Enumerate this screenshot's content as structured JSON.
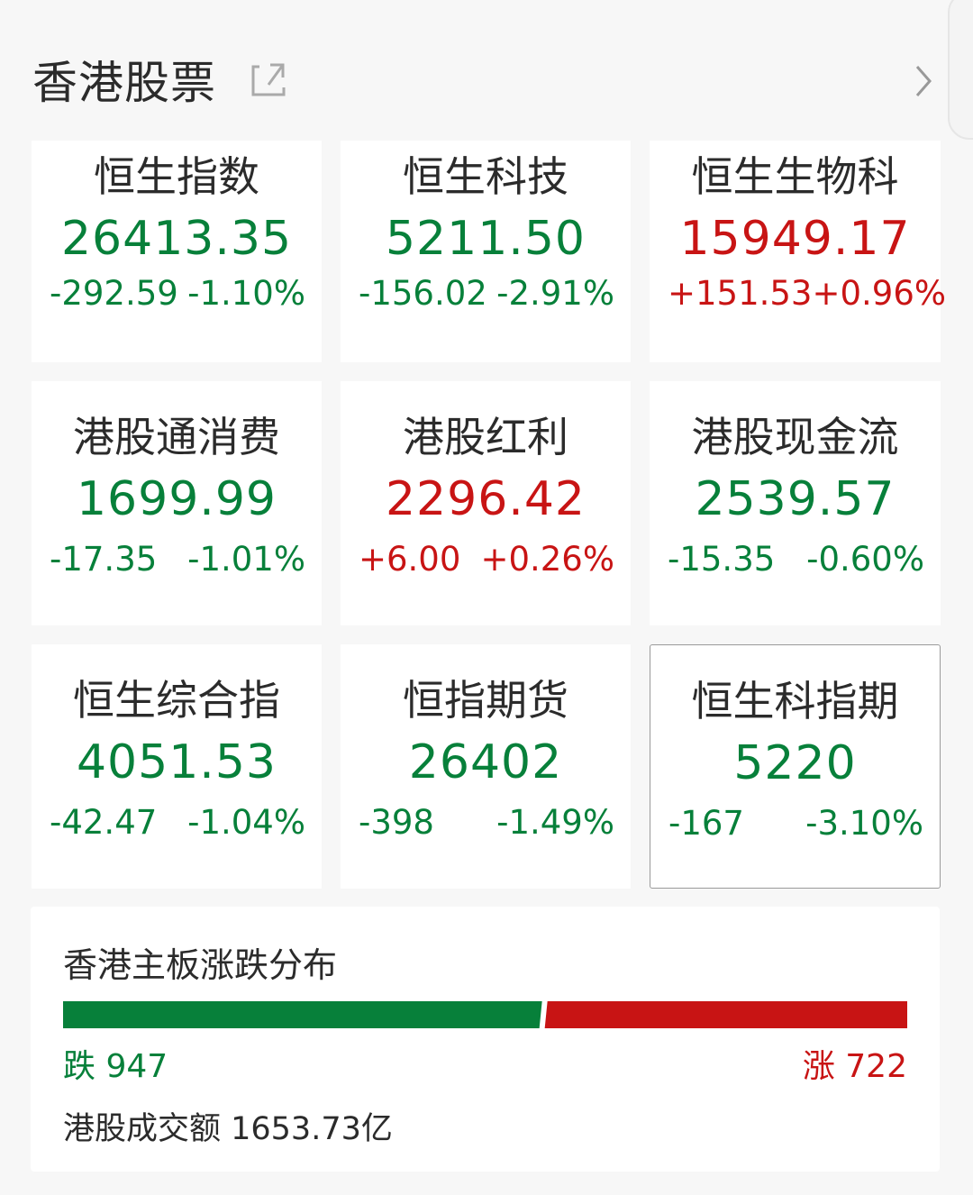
{
  "header": {
    "title": "香港股票",
    "external_icon": "external-link-icon",
    "more_icon": "chevron-right-icon"
  },
  "colors": {
    "down": "#07803a",
    "up": "#c81414"
  },
  "indices": [
    {
      "name": "恒生指数",
      "value": "26413.35",
      "change": "-292.59",
      "pct": "-1.10%",
      "dir": "down"
    },
    {
      "name": "恒生科技",
      "value": "5211.50",
      "change": "-156.02",
      "pct": "-2.91%",
      "dir": "down"
    },
    {
      "name": "恒生生物科",
      "value": "15949.17",
      "change": "+151.53",
      "pct": "+0.96%",
      "dir": "up"
    },
    {
      "name": "港股通消费",
      "value": "1699.99",
      "change": "-17.35",
      "pct": "-1.01%",
      "dir": "down"
    },
    {
      "name": "港股红利",
      "value": "2296.42",
      "change": "+6.00",
      "pct": "+0.26%",
      "dir": "up"
    },
    {
      "name": "港股现金流",
      "value": "2539.57",
      "change": "-15.35",
      "pct": "-0.60%",
      "dir": "down"
    },
    {
      "name": "恒生综合指",
      "value": "4051.53",
      "change": "-42.47",
      "pct": "-1.04%",
      "dir": "down"
    },
    {
      "name": "恒指期货",
      "value": "26402",
      "change": "-398",
      "pct": "-1.49%",
      "dir": "down"
    },
    {
      "name": "恒生科指期",
      "value": "5220",
      "change": "-167",
      "pct": "-3.10%",
      "dir": "down",
      "selected": true
    }
  ],
  "distribution": {
    "title": "香港主板涨跌分布",
    "down_label": "跌 947",
    "up_label": "涨 722",
    "down_count": 947,
    "up_count": 722,
    "turnover": "港股成交额 1653.73亿"
  }
}
